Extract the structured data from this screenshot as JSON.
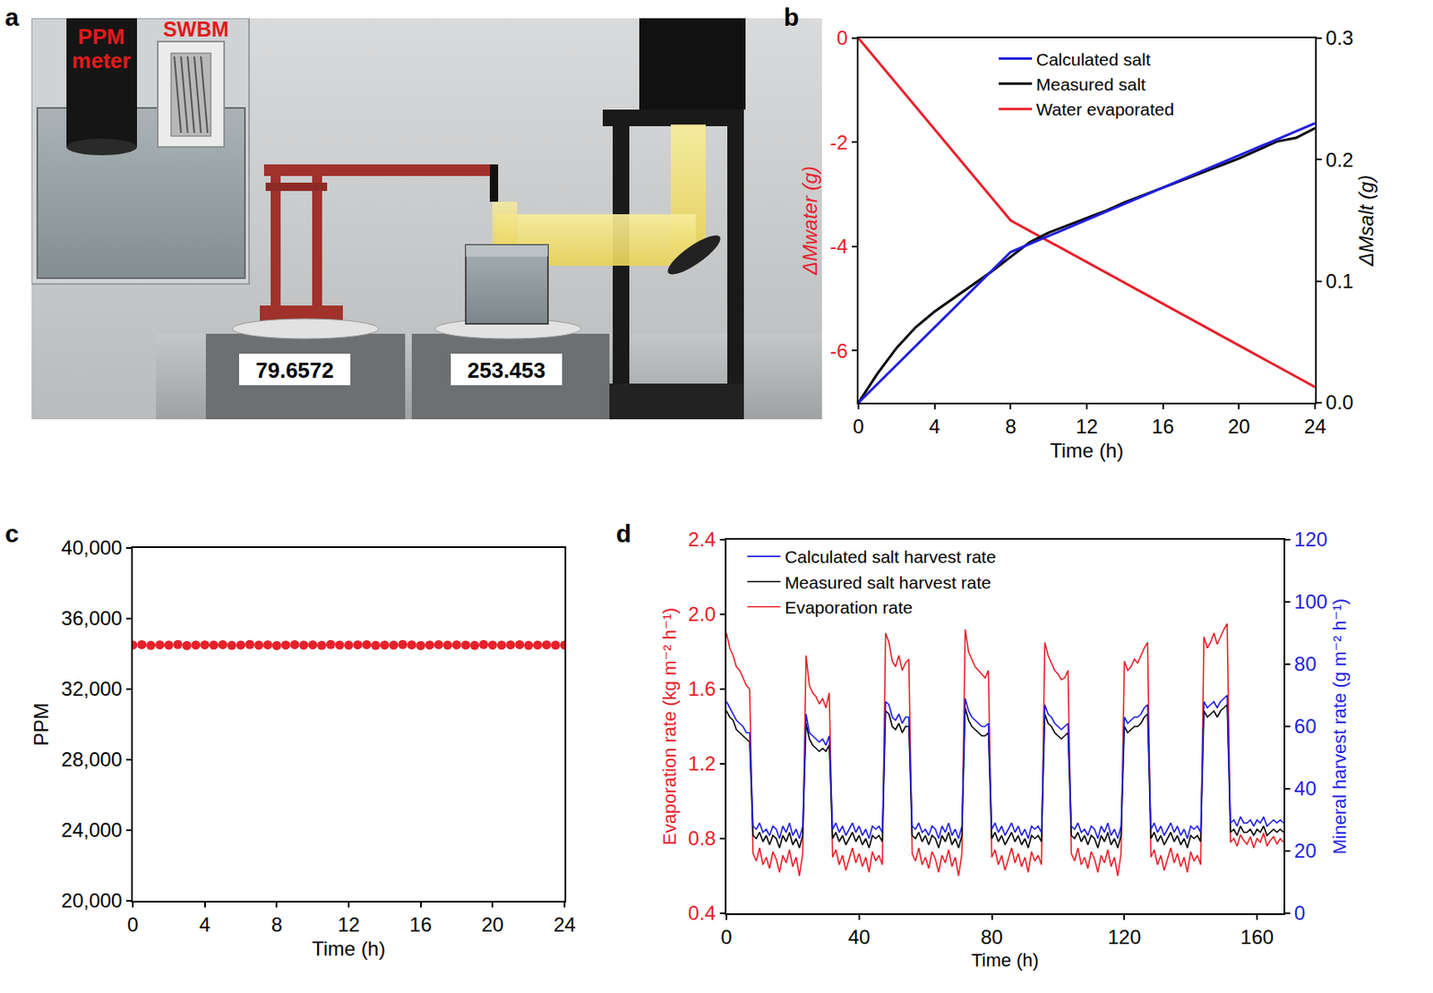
{
  "diagram": {
    "panel": "a",
    "ppm_meter": "PPM meter",
    "swbm": "SWBM",
    "balance_readings": [
      "79.6572",
      "253.453"
    ]
  },
  "chart_data": [
    {
      "panel": "b",
      "type": "line",
      "xlabel": "Time (h)",
      "ylabel": "ΔMwater (g)",
      "y2label": "ΔMsalt (g)",
      "xlim": [
        0,
        24
      ],
      "xticks": [
        0,
        4,
        8,
        12,
        16,
        20,
        24
      ],
      "ylim": [
        -7,
        0
      ],
      "yticks": [
        -6,
        -4,
        -2,
        0
      ],
      "y2lim": [
        0,
        0.3
      ],
      "y2ticks": [
        {
          "value": 0,
          "label": "0.0"
        },
        0.1,
        0.2,
        0.3
      ],
      "grid": false,
      "legend": "top",
      "series": [
        {
          "name": "Calculated salt",
          "color": "#1f1fe0",
          "axis": "y2",
          "x": [
            0,
            8,
            24
          ],
          "values": [
            0,
            0.124,
            0.23
          ]
        },
        {
          "name": "Measured salt",
          "color": "#000000",
          "axis": "y2",
          "x": [
            0,
            1,
            2,
            3,
            4,
            5,
            6,
            7,
            8,
            9,
            10,
            11,
            12,
            13,
            14,
            15,
            16,
            17,
            18,
            19,
            20,
            21,
            22,
            23,
            24
          ],
          "values": [
            0,
            0.024,
            0.045,
            0.062,
            0.075,
            0.086,
            0.097,
            0.108,
            0.12,
            0.132,
            0.14,
            0.146,
            0.152,
            0.158,
            0.165,
            0.171,
            0.177,
            0.183,
            0.189,
            0.195,
            0.201,
            0.208,
            0.215,
            0.218,
            0.226
          ]
        },
        {
          "name": "Water evaporated",
          "color": "#e8202a",
          "x": [
            0,
            8,
            24
          ],
          "values": [
            0,
            -3.5,
            -6.7
          ]
        }
      ]
    },
    {
      "panel": "c",
      "type": "scatter",
      "marker": "circle",
      "xlabel": "Time (h)",
      "ylabel": "PPM",
      "xlim": [
        0,
        24
      ],
      "xticks": [
        0,
        4,
        8,
        12,
        16,
        20,
        24
      ],
      "ylim": [
        20000,
        40000
      ],
      "yticks": [
        {
          "value": 20000,
          "label": "20,000"
        },
        {
          "value": 24000,
          "label": "24,000"
        },
        {
          "value": 28000,
          "label": "28,000"
        },
        {
          "value": 32000,
          "label": "32,000"
        },
        {
          "value": 36000,
          "label": "36,000"
        },
        {
          "value": 40000,
          "label": "40,000"
        }
      ],
      "grid": false,
      "x": [
        0,
        0.5,
        1,
        1.5,
        2,
        2.5,
        3,
        3.5,
        4,
        4.5,
        5,
        5.5,
        6,
        6.5,
        7,
        7.5,
        8,
        8.5,
        9,
        9.5,
        10,
        10.5,
        11,
        11.5,
        12,
        12.5,
        13,
        13.5,
        14,
        14.5,
        15,
        15.5,
        16,
        16.5,
        17,
        17.5,
        18,
        18.5,
        19,
        19.5,
        20,
        20.5,
        21,
        21.5,
        22,
        22.5,
        23,
        23.5,
        24
      ],
      "series": [
        {
          "color": "#e8202a",
          "values": [
            34500,
            34520,
            34480,
            34510,
            34490,
            34530,
            34470,
            34500,
            34510,
            34490,
            34520,
            34480,
            34500,
            34530,
            34490,
            34510,
            34470,
            34500,
            34520,
            34490,
            34510,
            34480,
            34530,
            34500,
            34490,
            34510,
            34520,
            34480,
            34500,
            34490,
            34530,
            34510,
            34470,
            34500,
            34520,
            34490,
            34510,
            34500,
            34480,
            34530,
            34500,
            34490,
            34510,
            34520,
            34480,
            34500,
            34510,
            34490,
            34500
          ]
        }
      ]
    },
    {
      "panel": "d",
      "type": "line",
      "xlabel": "Time (h)",
      "ylabel": "Evaporation rate (kg m⁻² h⁻¹)",
      "y2label": "Mineral harvest rate (g m⁻² h⁻¹)",
      "xlim": [
        0,
        168
      ],
      "xticks": [
        0,
        40,
        80,
        120,
        160
      ],
      "ylim": [
        0.4,
        2.4
      ],
      "yticks": [
        0.4,
        0.8,
        1.2,
        1.6,
        {
          "value": 2,
          "label": "2.0"
        },
        2.4
      ],
      "y2lim": [
        0,
        120
      ],
      "y2ticks": [
        0,
        20,
        40,
        60,
        80,
        100,
        120
      ],
      "grid": false,
      "legend": "upper left",
      "x": [
        0,
        1,
        2,
        3,
        4,
        5,
        6,
        7,
        8,
        9,
        10,
        11,
        12,
        13,
        14,
        15,
        16,
        17,
        18,
        19,
        20,
        21,
        22,
        23,
        24,
        25,
        26,
        27,
        28,
        29,
        30,
        31,
        32,
        33,
        34,
        35,
        36,
        37,
        38,
        39,
        40,
        41,
        42,
        43,
        44,
        45,
        46,
        47,
        48,
        49,
        50,
        51,
        52,
        53,
        54,
        55,
        56,
        57,
        58,
        59,
        60,
        61,
        62,
        63,
        64,
        65,
        66,
        67,
        68,
        69,
        70,
        71,
        72,
        73,
        74,
        75,
        76,
        77,
        78,
        79,
        80,
        81,
        82,
        83,
        84,
        85,
        86,
        87,
        88,
        89,
        90,
        91,
        92,
        93,
        94,
        95,
        96,
        97,
        98,
        99,
        100,
        101,
        102,
        103,
        104,
        105,
        106,
        107,
        108,
        109,
        110,
        111,
        112,
        113,
        114,
        115,
        116,
        117,
        118,
        119,
        120,
        121,
        122,
        123,
        124,
        125,
        126,
        127,
        128,
        129,
        130,
        131,
        132,
        133,
        134,
        135,
        136,
        137,
        138,
        139,
        140,
        141,
        142,
        143,
        144,
        145,
        146,
        147,
        148,
        149,
        150,
        151,
        152,
        153,
        154,
        155,
        156,
        157,
        158,
        159,
        160,
        161,
        162,
        163,
        164,
        165,
        166,
        167,
        168
      ],
      "series": [
        {
          "name": "Calculated salt harvest rate",
          "color": "#1f1fe0",
          "axis": "y2",
          "values": [
            68,
            66,
            64,
            62,
            61,
            60,
            58,
            58,
            28,
            27,
            29,
            26,
            27,
            25,
            28,
            27,
            24,
            28,
            26,
            29,
            25,
            27,
            24,
            28,
            64,
            58,
            57,
            56,
            55,
            56,
            54,
            57,
            27,
            29,
            26,
            28,
            25,
            27,
            29,
            26,
            28,
            25,
            27,
            24,
            28,
            27,
            28,
            26,
            68,
            67,
            63,
            62,
            64,
            61,
            63,
            63,
            28,
            27,
            29,
            26,
            27,
            25,
            28,
            27,
            24,
            28,
            26,
            29,
            25,
            27,
            24,
            28,
            69,
            65,
            63,
            62,
            61,
            60,
            60,
            61,
            27,
            29,
            26,
            28,
            25,
            27,
            29,
            26,
            28,
            25,
            27,
            24,
            28,
            27,
            28,
            26,
            67,
            64,
            63,
            61,
            60,
            59,
            60,
            61,
            28,
            27,
            29,
            26,
            27,
            25,
            28,
            27,
            24,
            28,
            26,
            29,
            25,
            27,
            24,
            28,
            63,
            61,
            62,
            63,
            63,
            64,
            66,
            67,
            27,
            29,
            26,
            28,
            25,
            27,
            29,
            26,
            28,
            25,
            27,
            24,
            28,
            27,
            28,
            26,
            68,
            66,
            67,
            68,
            66,
            68,
            69,
            70,
            29,
            30,
            28,
            31,
            29,
            29,
            30,
            28,
            30,
            29,
            31,
            28,
            29,
            30,
            29,
            30,
            29
          ]
        },
        {
          "name": "Measured salt harvest rate",
          "color": "#000000",
          "axis": "y2",
          "values": [
            65,
            63,
            62,
            59,
            58,
            57,
            56,
            55,
            25,
            24,
            26,
            23,
            25,
            22,
            25,
            24,
            21,
            25,
            23,
            26,
            22,
            24,
            21,
            25,
            61,
            56,
            54,
            53,
            52,
            53,
            52,
            54,
            24,
            26,
            23,
            25,
            22,
            24,
            26,
            23,
            25,
            22,
            24,
            21,
            25,
            24,
            25,
            23,
            65,
            64,
            60,
            59,
            61,
            58,
            60,
            60,
            25,
            24,
            26,
            23,
            25,
            22,
            25,
            24,
            21,
            25,
            23,
            26,
            22,
            24,
            21,
            25,
            66,
            62,
            60,
            59,
            58,
            57,
            57,
            58,
            24,
            26,
            23,
            25,
            22,
            24,
            26,
            23,
            25,
            22,
            24,
            21,
            25,
            24,
            25,
            23,
            64,
            61,
            60,
            58,
            57,
            56,
            57,
            58,
            25,
            24,
            26,
            23,
            25,
            22,
            25,
            24,
            21,
            25,
            23,
            26,
            22,
            24,
            21,
            25,
            60,
            58,
            59,
            60,
            60,
            61,
            63,
            64,
            24,
            26,
            23,
            25,
            22,
            24,
            26,
            23,
            25,
            22,
            24,
            21,
            25,
            24,
            25,
            23,
            65,
            63,
            64,
            65,
            63,
            65,
            66,
            67,
            26,
            27,
            25,
            28,
            26,
            26,
            27,
            25,
            27,
            26,
            28,
            25,
            26,
            27,
            26,
            27,
            26
          ]
        },
        {
          "name": "Evaporation rate",
          "color": "#e8202a",
          "values": [
            1.9,
            1.82,
            1.78,
            1.72,
            1.7,
            1.66,
            1.62,
            1.6,
            0.72,
            0.68,
            0.75,
            0.66,
            0.7,
            0.64,
            0.73,
            0.69,
            0.62,
            0.71,
            0.67,
            0.74,
            0.65,
            0.7,
            0.6,
            0.72,
            1.78,
            1.62,
            1.58,
            1.56,
            1.52,
            1.55,
            1.5,
            1.58,
            0.7,
            0.74,
            0.66,
            0.71,
            0.63,
            0.69,
            0.75,
            0.67,
            0.72,
            0.65,
            0.7,
            0.62,
            0.73,
            0.68,
            0.71,
            0.66,
            1.9,
            1.85,
            1.75,
            1.72,
            1.78,
            1.7,
            1.74,
            1.76,
            0.72,
            0.68,
            0.75,
            0.66,
            0.7,
            0.64,
            0.73,
            0.69,
            0.62,
            0.71,
            0.67,
            0.74,
            0.65,
            0.7,
            0.6,
            0.72,
            1.92,
            1.8,
            1.76,
            1.72,
            1.7,
            1.68,
            1.66,
            1.7,
            0.7,
            0.74,
            0.66,
            0.71,
            0.63,
            0.69,
            0.75,
            0.67,
            0.72,
            0.65,
            0.7,
            0.62,
            0.73,
            0.68,
            0.71,
            0.66,
            1.85,
            1.78,
            1.74,
            1.7,
            1.68,
            1.65,
            1.66,
            1.7,
            0.72,
            0.68,
            0.75,
            0.66,
            0.7,
            0.64,
            0.73,
            0.69,
            0.62,
            0.71,
            0.67,
            0.74,
            0.65,
            0.7,
            0.6,
            0.72,
            1.75,
            1.7,
            1.72,
            1.76,
            1.74,
            1.78,
            1.82,
            1.85,
            0.7,
            0.74,
            0.66,
            0.71,
            0.63,
            0.69,
            0.75,
            0.67,
            0.72,
            0.65,
            0.7,
            0.62,
            0.73,
            0.68,
            0.71,
            0.66,
            1.88,
            1.82,
            1.85,
            1.9,
            1.84,
            1.88,
            1.92,
            1.95,
            0.78,
            0.8,
            0.76,
            0.82,
            0.79,
            0.77,
            0.81,
            0.75,
            0.8,
            0.78,
            0.83,
            0.76,
            0.79,
            0.81,
            0.77,
            0.8,
            0.78
          ]
        }
      ]
    }
  ]
}
